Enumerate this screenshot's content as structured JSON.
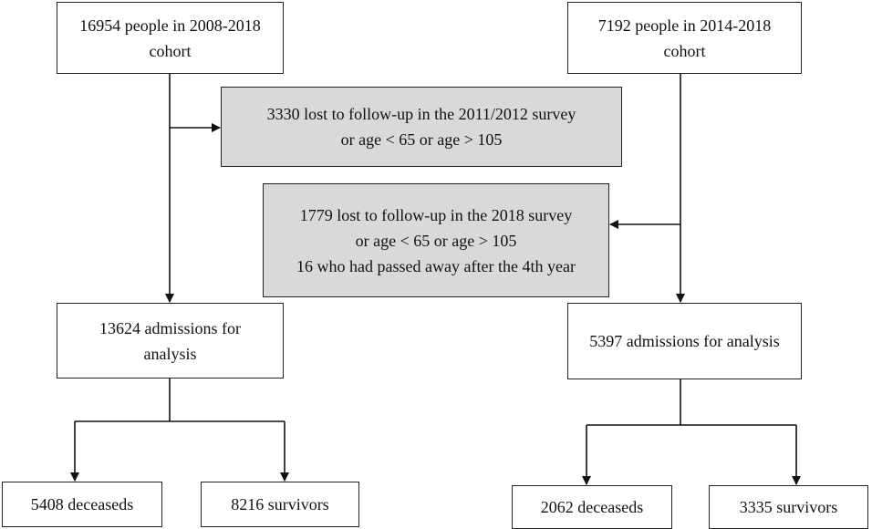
{
  "cohort_a": {
    "start": [
      "16954 people in 2008-2018",
      "cohort"
    ],
    "excluded": [
      "3330 lost to follow-up in the 2011/2012 survey",
      "or age < 65 or age > 105"
    ],
    "analysis": [
      "13624 admissions for",
      "analysis"
    ],
    "deceased": "5408 deceaseds",
    "survivors": "8216 survivors"
  },
  "cohort_b": {
    "start": [
      "7192 people in 2014-2018",
      "cohort"
    ],
    "excluded": [
      "1779 lost to follow-up in the 2018 survey",
      "or age < 65 or age > 105",
      "16 who had passed away after the 4th year"
    ],
    "analysis": "5397 admissions for analysis",
    "deceased": "2062 deceaseds",
    "survivors": "3335 survivors"
  }
}
